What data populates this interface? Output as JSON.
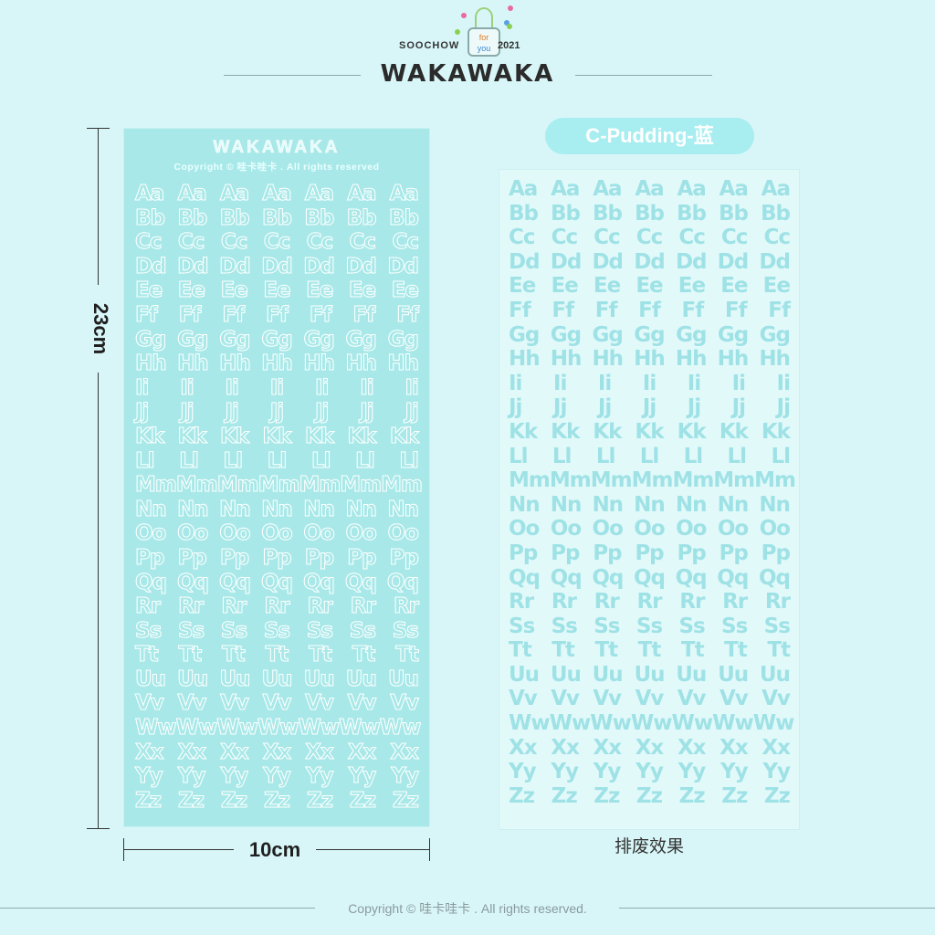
{
  "logo": {
    "left_text": "SOOCHOW",
    "gift_line1": "for",
    "gift_line2": "you",
    "year": "2021",
    "brand": "WAKAWAKA"
  },
  "left_sheet": {
    "title": "WAKAWAKA",
    "copyright": "Copyright © 哇卡哇卡 . All rights reserved",
    "letters": "ABCDEFGHIJKLMNOPQRSTUVWXYZ",
    "style": "outline"
  },
  "right_sheet": {
    "label": "C-Pudding-蓝",
    "letters": "ABCDEFGHIJKLMNOPQRSTUVWXYZ",
    "caption": "排废效果",
    "style": "filled"
  },
  "dimensions": {
    "height": "23cm",
    "width": "10cm"
  },
  "footer": "Copyright © 哇卡哇卡 . All rights reserved.",
  "colors": {
    "background": "#d8f6f8",
    "sheet": "#a9e8e8",
    "letters": "#9fe2e6",
    "pill": "#a8eef0"
  }
}
